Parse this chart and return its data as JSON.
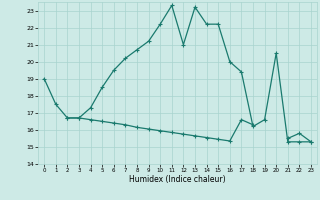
{
  "xlabel": "Humidex (Indice chaleur)",
  "x_values": [
    0,
    1,
    2,
    3,
    4,
    5,
    6,
    7,
    8,
    9,
    10,
    11,
    12,
    13,
    14,
    15,
    16,
    17,
    18,
    19,
    20,
    21,
    22,
    23
  ],
  "line1_y": [
    19.0,
    17.5,
    16.7,
    16.7,
    17.3,
    18.5,
    19.5,
    20.2,
    20.7,
    21.2,
    22.2,
    23.3,
    21.0,
    23.2,
    22.2,
    22.2,
    20.0,
    19.4,
    16.2,
    16.6,
    20.5,
    15.3,
    15.3,
    15.3
  ],
  "line2_y": [
    null,
    null,
    16.7,
    16.7,
    16.6,
    16.5,
    16.4,
    16.3,
    16.15,
    16.05,
    15.95,
    15.85,
    15.75,
    15.65,
    15.55,
    15.45,
    15.35,
    16.6,
    16.3,
    null,
    null,
    15.5,
    15.8,
    15.3
  ],
  "line_color": "#1a7a6e",
  "bg_color": "#cdeae6",
  "grid_color": "#a8d4cf",
  "ylim": [
    14,
    23.5
  ],
  "yticks": [
    14,
    15,
    16,
    17,
    18,
    19,
    20,
    21,
    22,
    23
  ],
  "xticks": [
    0,
    1,
    2,
    3,
    4,
    5,
    6,
    7,
    8,
    9,
    10,
    11,
    12,
    13,
    14,
    15,
    16,
    17,
    18,
    19,
    20,
    21,
    22,
    23
  ],
  "marker": "+",
  "marker_size": 3.5,
  "line_width": 0.9
}
